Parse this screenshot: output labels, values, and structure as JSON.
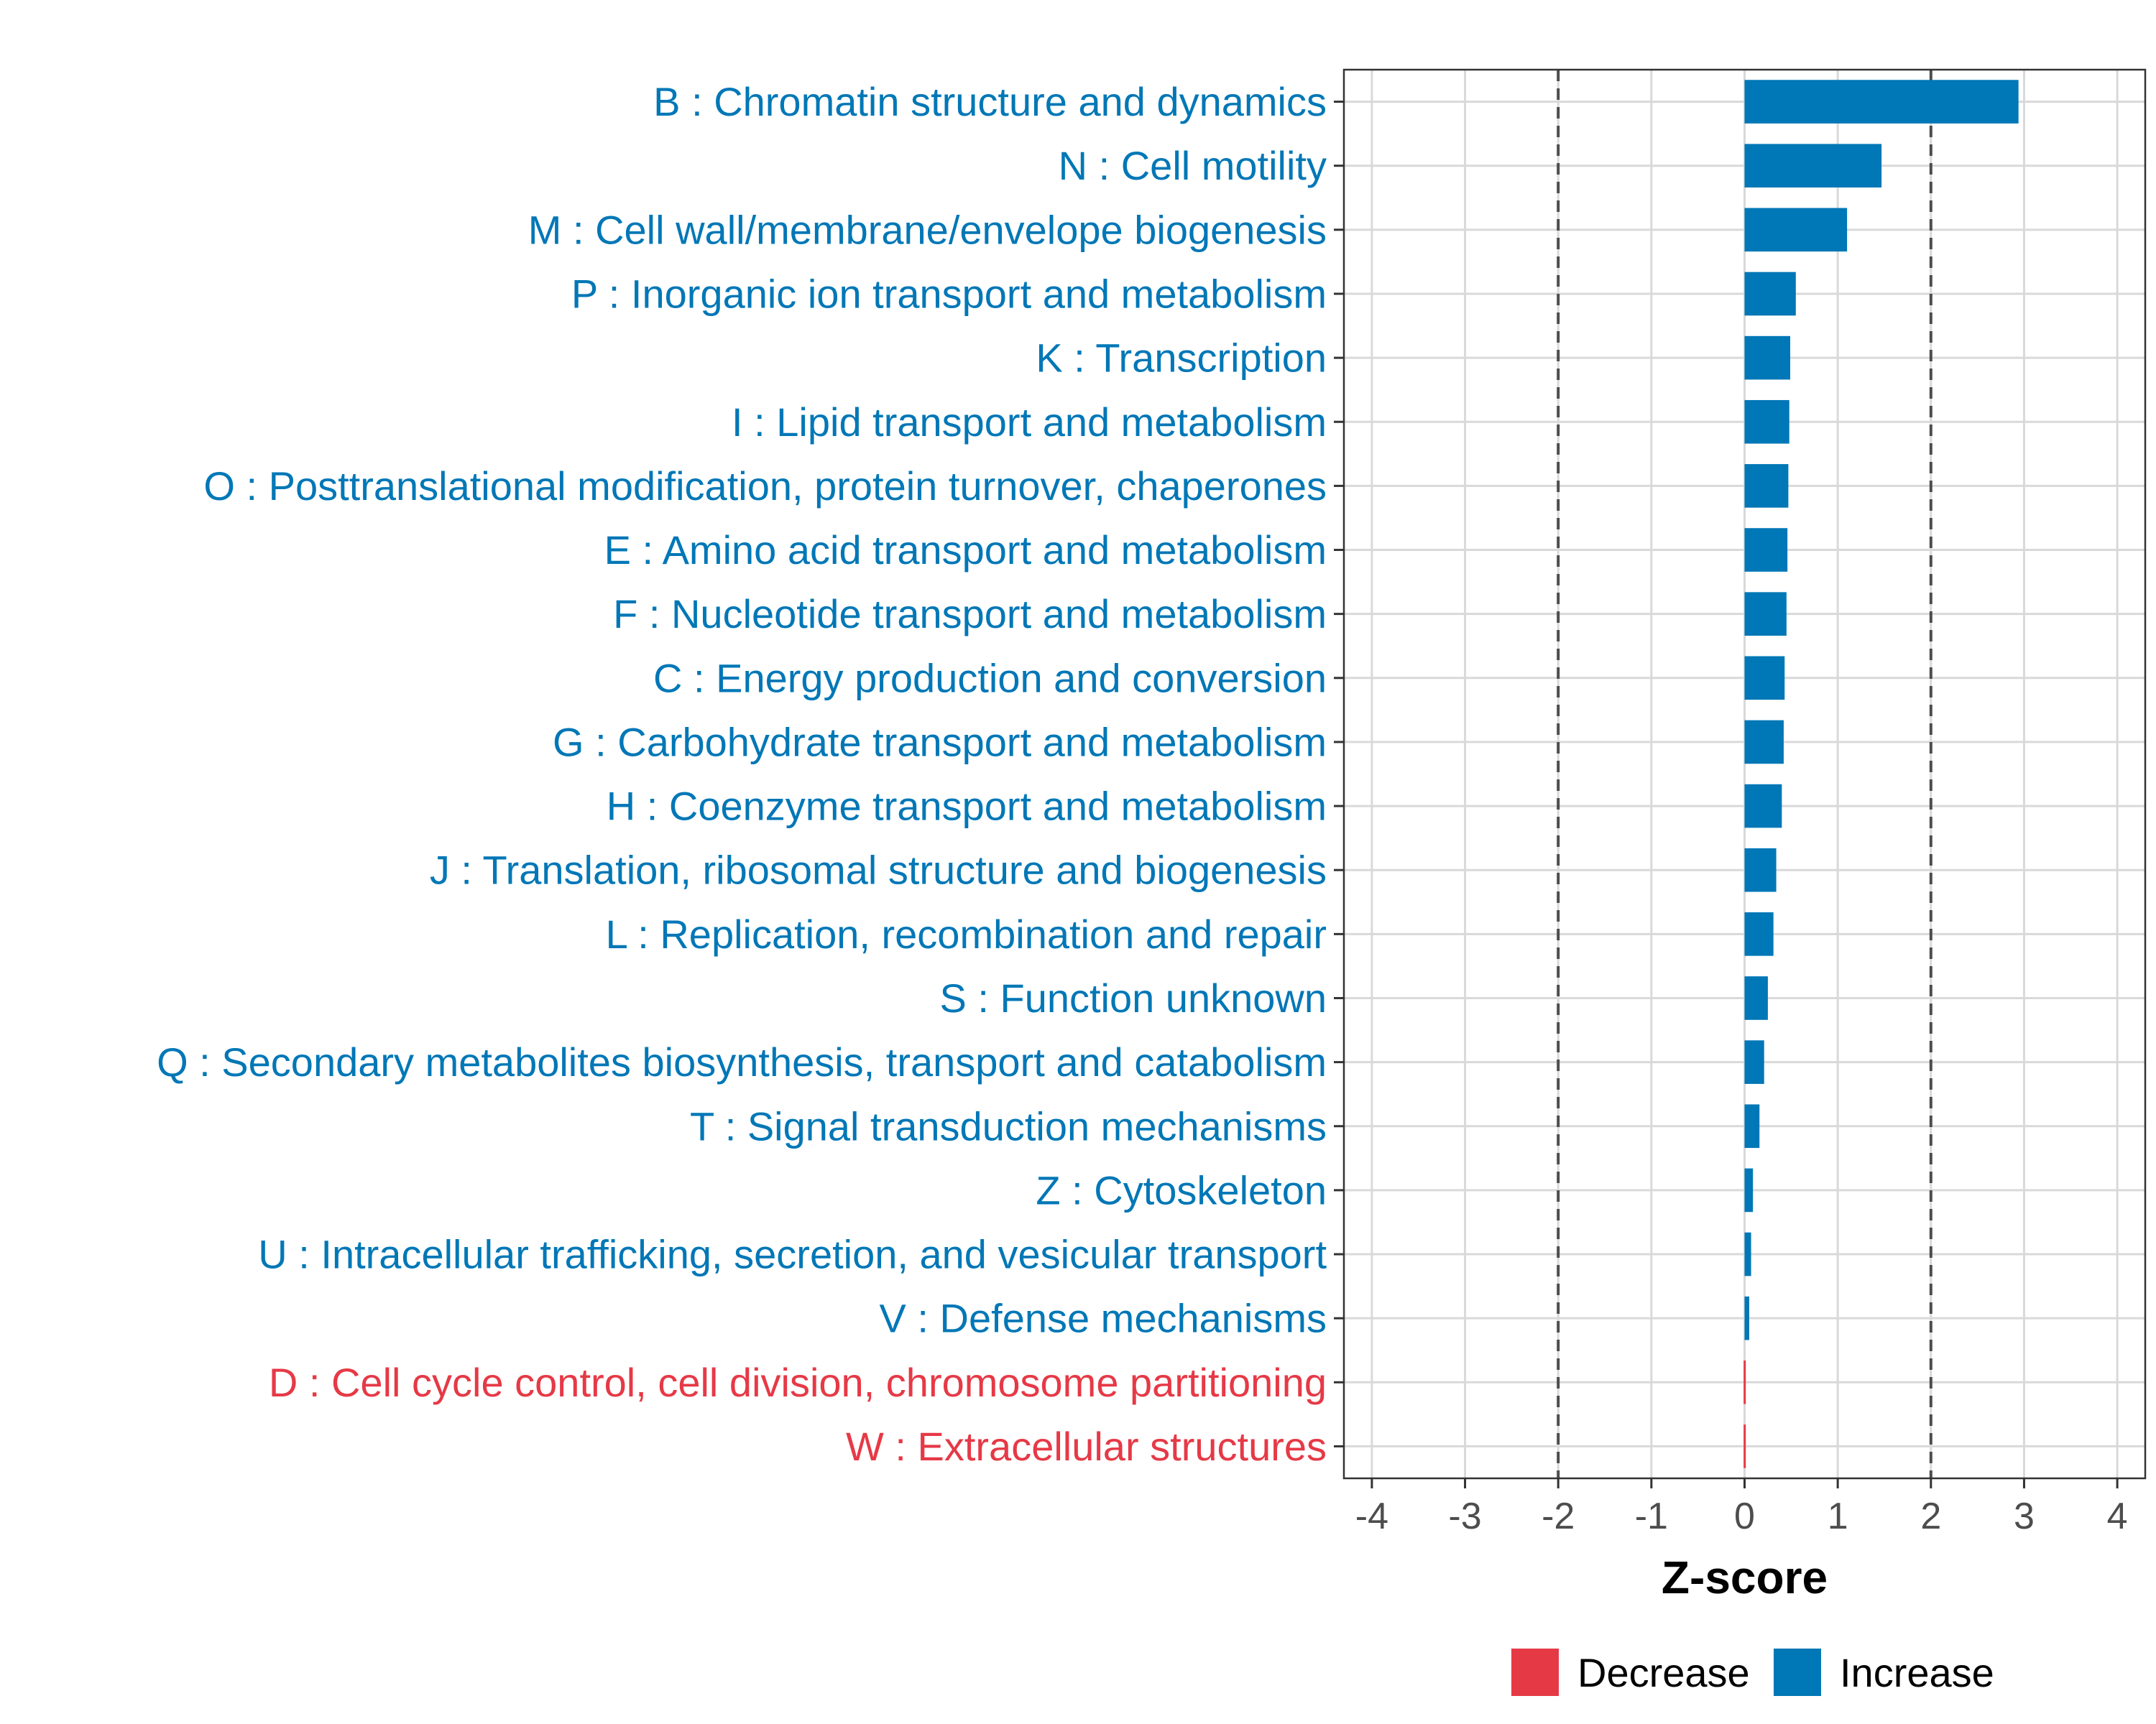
{
  "chart_data": {
    "type": "bar",
    "orientation": "horizontal",
    "xlabel": "Z-score",
    "xlim": [
      -4.3,
      4.3
    ],
    "xticks": [
      -4,
      -3,
      -2,
      -1,
      0,
      1,
      2,
      3,
      4
    ],
    "xtick_labels": [
      "-4",
      "-3",
      "-2",
      "-1",
      "0",
      "1",
      "2",
      "3",
      "4"
    ],
    "reference_lines": [
      -2,
      2
    ],
    "grid": true,
    "colors": {
      "Increase": "#0077b6",
      "Decrease": "#e63946",
      "frame": "#333333",
      "grid": "#d9d9d9",
      "refline": "#4d4d4d"
    },
    "legend": {
      "position": "bottom",
      "entries": [
        "Decrease",
        "Increase"
      ]
    },
    "categories": [
      "B : Chromatin structure and dynamics",
      "N : Cell motility",
      "M : Cell wall/membrane/envelope biogenesis",
      "P : Inorganic ion transport and metabolism",
      "K : Transcription",
      "I : Lipid transport and metabolism",
      "O : Posttranslational modification, protein turnover, chaperones",
      "E : Amino acid transport and metabolism",
      "F : Nucleotide transport and metabolism",
      "C : Energy production and conversion",
      "G : Carbohydrate transport and metabolism",
      "H : Coenzyme transport and metabolism",
      "J : Translation, ribosomal structure and biogenesis",
      "L : Replication, recombination and repair",
      "S : Function unknown",
      "Q : Secondary metabolites biosynthesis, transport and catabolism",
      "T : Signal transduction mechanisms",
      "Z : Cytoskeleton",
      "U : Intracellular trafficking, secretion, and vesicular transport",
      "V : Defense mechanisms",
      "D : Cell cycle control, cell division, chromosome partitioning",
      "W : Extracellular structures"
    ],
    "values": [
      2.94,
      1.47,
      1.1,
      0.55,
      0.49,
      0.48,
      0.47,
      0.46,
      0.45,
      0.43,
      0.42,
      0.4,
      0.34,
      0.31,
      0.25,
      0.21,
      0.16,
      0.09,
      0.07,
      0.05,
      -0.01,
      -0.01
    ],
    "directions": [
      "Increase",
      "Increase",
      "Increase",
      "Increase",
      "Increase",
      "Increase",
      "Increase",
      "Increase",
      "Increase",
      "Increase",
      "Increase",
      "Increase",
      "Increase",
      "Increase",
      "Increase",
      "Increase",
      "Increase",
      "Increase",
      "Increase",
      "Increase",
      "Decrease",
      "Decrease"
    ]
  }
}
